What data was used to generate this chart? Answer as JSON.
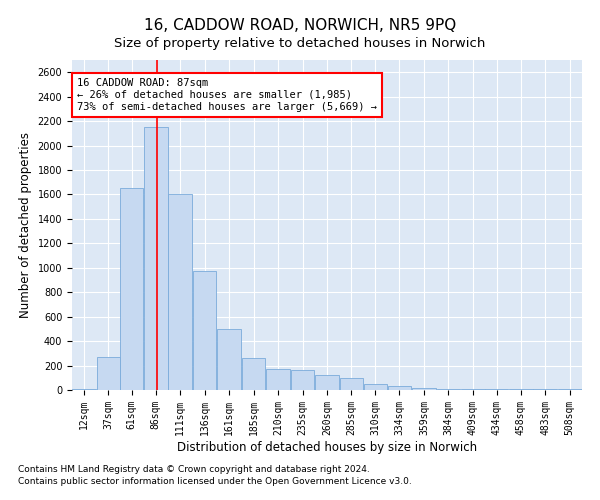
{
  "title": "16, CADDOW ROAD, NORWICH, NR5 9PQ",
  "subtitle": "Size of property relative to detached houses in Norwich",
  "xlabel": "Distribution of detached houses by size in Norwich",
  "ylabel": "Number of detached properties",
  "footnote1": "Contains HM Land Registry data © Crown copyright and database right 2024.",
  "footnote2": "Contains public sector information licensed under the Open Government Licence v3.0.",
  "annotation_line1": "16 CADDOW ROAD: 87sqm",
  "annotation_line2": "← 26% of detached houses are smaller (1,985)",
  "annotation_line3": "73% of semi-detached houses are larger (5,669) →",
  "bar_color": "#c6d9f1",
  "bar_edge_color": "#7aabdb",
  "redline_x": 87,
  "categories": [
    "12sqm",
    "37sqm",
    "61sqm",
    "86sqm",
    "111sqm",
    "136sqm",
    "161sqm",
    "185sqm",
    "210sqm",
    "235sqm",
    "260sqm",
    "285sqm",
    "310sqm",
    "334sqm",
    "359sqm",
    "384sqm",
    "409sqm",
    "434sqm",
    "458sqm",
    "483sqm",
    "508sqm"
  ],
  "bin_edges": [
    0,
    25,
    49,
    73,
    98,
    123,
    148,
    173,
    198,
    223,
    248,
    273,
    298,
    322,
    347,
    372,
    397,
    422,
    446,
    471,
    496,
    521
  ],
  "values": [
    10,
    270,
    1650,
    2150,
    1600,
    975,
    500,
    260,
    175,
    165,
    120,
    100,
    50,
    30,
    15,
    10,
    5,
    10,
    5,
    5,
    5
  ],
  "ylim": [
    0,
    2700
  ],
  "yticks": [
    0,
    200,
    400,
    600,
    800,
    1000,
    1200,
    1400,
    1600,
    1800,
    2000,
    2200,
    2400,
    2600
  ],
  "bg_color": "#dde8f5",
  "grid_color": "white",
  "title_fontsize": 11,
  "subtitle_fontsize": 9.5,
  "axis_label_fontsize": 8.5,
  "tick_fontsize": 7,
  "annotation_fontsize": 7.5,
  "footnote_fontsize": 6.5
}
